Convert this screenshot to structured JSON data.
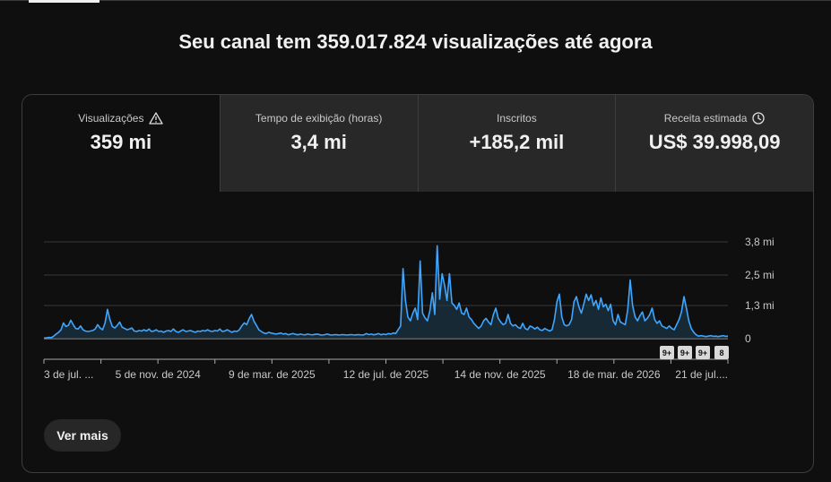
{
  "headline": "Seu canal tem 359.017.824 visualizações até agora",
  "tabs": [
    {
      "label": "Visualizações",
      "value": "359 mi",
      "icon": "warning-icon",
      "active": true
    },
    {
      "label": "Tempo de exibição (horas)",
      "value": "3,4 mi"
    },
    {
      "label": "Inscritos",
      "value": "+185,2 mil"
    },
    {
      "label": "Receita estimada",
      "value": "US$ 39.998,09",
      "icon": "clock-icon"
    }
  ],
  "more_button": "Ver mais",
  "colors": {
    "line": "#3ea6ff",
    "fill": "#1d3a4c",
    "badge": "#d9d9d9"
  },
  "chart_data": {
    "type": "line",
    "y_unit": "views",
    "y_tick_labels": [
      "0",
      "1,3 mi",
      "2,5 mi",
      "3,8 mi"
    ],
    "y_ticks": [
      0,
      1.3,
      2.5,
      3.8
    ],
    "ylim": [
      0,
      3.8
    ],
    "x_tick_labels": [
      "3 de jul. ...",
      "5 de nov. de 2024",
      "9 de mar. de 2025",
      "12 de jul. de 2025",
      "14 de nov. de 2025",
      "18 de mar. de 2026",
      "21 de jul...."
    ],
    "grid": true,
    "y_axis_position": "right",
    "badges": [
      "9+",
      "9+",
      "9+",
      "8"
    ],
    "series": [
      {
        "values": [
          0.02,
          0.03,
          0.05,
          0.04,
          0.1,
          0.18,
          0.25,
          0.35,
          0.62,
          0.48,
          0.52,
          0.72,
          0.55,
          0.4,
          0.38,
          0.5,
          0.35,
          0.3,
          0.28,
          0.3,
          0.32,
          0.38,
          0.55,
          0.42,
          0.35,
          0.6,
          1.15,
          0.75,
          0.48,
          0.42,
          0.52,
          0.65,
          0.45,
          0.4,
          0.35,
          0.38,
          0.42,
          0.3,
          0.28,
          0.32,
          0.3,
          0.35,
          0.3,
          0.38,
          0.28,
          0.3,
          0.35,
          0.28,
          0.3,
          0.25,
          0.3,
          0.32,
          0.28,
          0.38,
          0.28,
          0.25,
          0.3,
          0.35,
          0.28,
          0.3,
          0.32,
          0.28,
          0.25,
          0.3,
          0.28,
          0.32,
          0.3,
          0.35,
          0.3,
          0.28,
          0.32,
          0.3,
          0.38,
          0.28,
          0.3,
          0.35,
          0.3,
          0.25,
          0.3,
          0.28,
          0.35,
          0.5,
          0.62,
          0.55,
          0.78,
          0.95,
          0.68,
          0.52,
          0.35,
          0.28,
          0.22,
          0.2,
          0.25,
          0.22,
          0.2,
          0.18,
          0.2,
          0.22,
          0.18,
          0.2,
          0.15,
          0.18,
          0.2,
          0.17,
          0.15,
          0.18,
          0.16,
          0.15,
          0.18,
          0.16,
          0.15,
          0.17,
          0.18,
          0.15,
          0.14,
          0.16,
          0.18,
          0.15,
          0.14,
          0.16,
          0.15,
          0.14,
          0.16,
          0.15,
          0.14,
          0.15,
          0.16,
          0.14,
          0.15,
          0.16,
          0.14,
          0.15,
          0.2,
          0.16,
          0.18,
          0.15,
          0.17,
          0.2,
          0.15,
          0.18,
          0.16,
          0.2,
          0.18,
          0.22,
          0.2,
          0.35,
          0.5,
          2.75,
          1.5,
          0.85,
          0.7,
          1.0,
          1.2,
          0.75,
          3.05,
          1.0,
          0.82,
          0.7,
          1.1,
          1.8,
          0.95,
          3.65,
          1.55,
          2.55,
          2.1,
          1.5,
          2.55,
          1.4,
          1.3,
          1.15,
          1.4,
          1.0,
          0.95,
          1.2,
          0.85,
          0.75,
          0.6,
          0.5,
          0.4,
          0.5,
          0.7,
          0.8,
          0.65,
          0.55,
          0.95,
          1.2,
          0.8,
          0.65,
          0.55,
          0.6,
          0.95,
          0.6,
          0.5,
          0.55,
          0.45,
          0.4,
          0.6,
          0.4,
          0.35,
          0.5,
          0.45,
          0.38,
          0.45,
          0.35,
          0.32,
          0.4,
          0.35,
          0.3,
          0.35,
          0.75,
          1.45,
          1.75,
          0.85,
          0.55,
          0.5,
          0.55,
          0.75,
          1.45,
          1.65,
          1.25,
          1.0,
          1.35,
          1.75,
          1.5,
          1.72,
          1.3,
          1.5,
          1.15,
          1.6,
          1.25,
          1.35,
          1.1,
          1.35,
          0.7,
          0.55,
          0.95,
          0.65,
          0.6,
          0.55,
          1.15,
          2.3,
          1.3,
          0.85,
          0.7,
          0.9,
          1.05,
          0.7,
          0.8,
          0.95,
          1.2,
          0.75,
          0.6,
          0.7,
          0.5,
          0.45,
          0.4,
          0.5,
          0.4,
          0.35,
          0.55,
          0.75,
          1.05,
          1.65,
          1.2,
          0.7,
          0.4,
          0.25,
          0.15,
          0.1,
          0.12,
          0.1,
          0.08,
          0.1,
          0.12,
          0.09,
          0.1,
          0.08,
          0.1,
          0.12,
          0.09,
          0.1
        ]
      }
    ]
  }
}
